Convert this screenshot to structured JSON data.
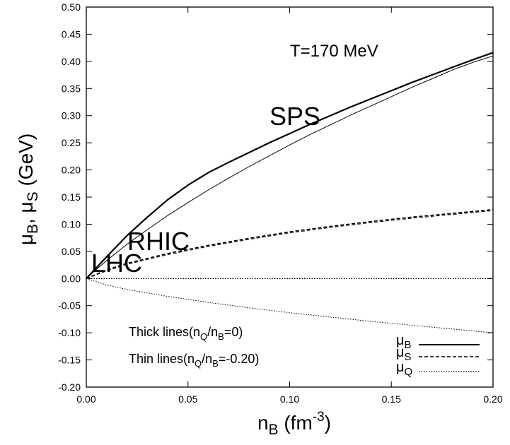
{
  "chart_data": {
    "type": "line",
    "title": "",
    "xlabel": {
      "base": "n",
      "sub": "B",
      "tail": " (fm",
      "sup": "-3",
      "end": ")"
    },
    "ylabel": {
      "parts": [
        "μ",
        "B",
        ", μ",
        "S",
        " (GeV)"
      ]
    },
    "xlim": [
      0.0,
      0.2
    ],
    "ylim": [
      -0.2,
      0.5
    ],
    "xticks": [
      0.0,
      0.05,
      0.1,
      0.15,
      0.2
    ],
    "xtick_labels": [
      "0.00",
      "0.05",
      "0.10",
      "0.15",
      "0.20"
    ],
    "yticks": [
      -0.2,
      -0.15,
      -0.1,
      -0.05,
      0.0,
      0.05,
      0.1,
      0.15,
      0.2,
      0.25,
      0.3,
      0.35,
      0.4,
      0.45,
      0.5
    ],
    "ytick_labels": [
      "-0.20",
      "-0.15",
      "-0.10",
      "-0.05",
      "0.00",
      "0.05",
      "0.10",
      "0.15",
      "0.20",
      "0.25",
      "0.30",
      "0.35",
      "0.40",
      "0.45",
      "0.50"
    ],
    "grid": false,
    "legend_position": "bottom-right",
    "legend": [
      {
        "base": "μ",
        "sub": "B",
        "style": "solid"
      },
      {
        "base": "μ",
        "sub": "S",
        "style": "dashed"
      },
      {
        "base": "μ",
        "sub": "Q",
        "style": "dotted"
      }
    ],
    "annotations": {
      "temperature": "T=170 MeV",
      "sps": "SPS",
      "rhic": "RHIC",
      "lhc": "LHC",
      "thick_note": {
        "a": "Thick lines(n",
        "s1": "Q",
        "b": "/n",
        "s2": "B",
        "c": "=0)"
      },
      "thin_note": {
        "a": "Thin lines(n",
        "s1": "Q",
        "b": "/n",
        "s2": "B",
        "c": "=-0.20)"
      }
    },
    "series": [
      {
        "quantity": "μB",
        "lines": "thick",
        "style": "solid",
        "x": [
          0,
          0.005,
          0.01,
          0.02,
          0.03,
          0.04,
          0.05,
          0.06,
          0.07,
          0.08,
          0.09,
          0.1,
          0.11,
          0.12,
          0.13,
          0.14,
          0.15,
          0.16,
          0.17,
          0.18,
          0.19,
          0.2
        ],
        "y": [
          0,
          0.02,
          0.04,
          0.079,
          0.113,
          0.145,
          0.172,
          0.195,
          0.214,
          0.232,
          0.25,
          0.267,
          0.284,
          0.3,
          0.316,
          0.331,
          0.346,
          0.361,
          0.375,
          0.389,
          0.403,
          0.416
        ]
      },
      {
        "quantity": "μB",
        "lines": "thin",
        "style": "solid",
        "x": [
          0,
          0.005,
          0.01,
          0.02,
          0.03,
          0.04,
          0.05,
          0.06,
          0.07,
          0.08,
          0.09,
          0.1,
          0.11,
          0.12,
          0.13,
          0.14,
          0.15,
          0.16,
          0.17,
          0.18,
          0.19,
          0.2
        ],
        "y": [
          0,
          0.017,
          0.033,
          0.063,
          0.09,
          0.116,
          0.14,
          0.163,
          0.185,
          0.206,
          0.226,
          0.246,
          0.265,
          0.283,
          0.301,
          0.318,
          0.335,
          0.352,
          0.368,
          0.384,
          0.398,
          0.41
        ]
      },
      {
        "quantity": "μS",
        "lines": "thick",
        "style": "dashed",
        "x": [
          0,
          0.01,
          0.02,
          0.04,
          0.06,
          0.08,
          0.1,
          0.12,
          0.14,
          0.16,
          0.18,
          0.2
        ],
        "y": [
          0,
          0.016,
          0.028,
          0.046,
          0.061,
          0.074,
          0.086,
          0.096,
          0.105,
          0.113,
          0.12,
          0.127
        ]
      },
      {
        "quantity": "μS",
        "lines": "thin",
        "style": "dashed",
        "x": [
          0,
          0.01,
          0.02,
          0.04,
          0.06,
          0.08,
          0.1,
          0.12,
          0.14,
          0.16,
          0.18,
          0.2
        ],
        "y": [
          0,
          0.014,
          0.026,
          0.044,
          0.059,
          0.072,
          0.084,
          0.094,
          0.103,
          0.111,
          0.118,
          0.125
        ]
      },
      {
        "quantity": "μQ",
        "lines": "thick",
        "style": "dotted",
        "x": [
          0,
          0.2
        ],
        "y": [
          0,
          0
        ]
      },
      {
        "quantity": "μQ",
        "lines": "thin",
        "style": "dotted",
        "x": [
          0,
          0.01,
          0.02,
          0.04,
          0.06,
          0.08,
          0.1,
          0.12,
          0.14,
          0.16,
          0.18,
          0.2
        ],
        "y": [
          0,
          -0.012,
          -0.02,
          -0.033,
          -0.044,
          -0.054,
          -0.063,
          -0.071,
          -0.079,
          -0.086,
          -0.093,
          -0.1
        ]
      }
    ]
  }
}
